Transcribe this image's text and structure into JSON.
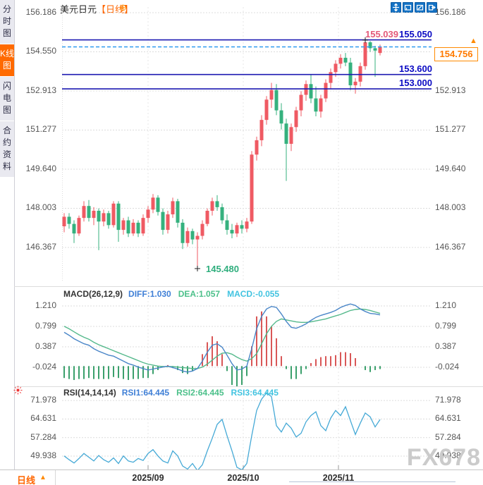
{
  "sidebar": {
    "tabs": [
      {
        "label": "分时图",
        "active": false
      },
      {
        "label": "K线图",
        "active": true
      },
      {
        "label": "闪电图",
        "active": false
      },
      {
        "label": "合约资料",
        "active": false
      }
    ]
  },
  "header": {
    "symbol": "美元日元",
    "period_tag": "【日线】",
    "add_icon": "⊕"
  },
  "toolbar": {
    "icons": [
      "pan-icon",
      "box-zoom-icon",
      "chart-style-icon",
      "export-icon"
    ]
  },
  "colors": {
    "accent_orange": "#ff6a00",
    "candle_up": "#ef5a63",
    "candle_down": "#35b17e",
    "level_line": "#1d1ab2",
    "current_dashed": "#2f9bef",
    "diff_line": "#4a86c8",
    "dea_line": "#55b98c",
    "macd_cyan": "#41c3e0",
    "rsi_line": "#45a9d6"
  },
  "price_panel": {
    "left_axis": [
      "156.186",
      "154.550",
      "152.913",
      "151.277",
      "149.640",
      "148.003",
      "146.367"
    ],
    "right_axis": [
      "156.186",
      "152.913",
      "151.277",
      "149.640",
      "148.003",
      "146.367"
    ],
    "levels": {
      "high_marker": "155.039",
      "resistance": "155.050",
      "support1": "153.600",
      "support2": "153.000",
      "current_price": "154.756",
      "low_marker": "145.480"
    }
  },
  "macd_panel": {
    "title": "MACD(26,12,9)",
    "diff_label": "DIFF:1.030",
    "dea_label": "DEA:1.057",
    "macd_label": "MACD:-0.055",
    "axis": [
      "1.210",
      "0.799",
      "0.387",
      "-0.024"
    ]
  },
  "rsi_panel": {
    "title": "RSI(14,14,14)",
    "rsi1_label": "RSI1:64.445",
    "rsi2_label": "RSI2:64.445",
    "rsi3_label": "RSI3:64.445",
    "axis": [
      "71.978",
      "64.631",
      "57.284",
      "49.938"
    ]
  },
  "footer": {
    "period": "日线",
    "arrow": "▲",
    "months": [
      "2025/09",
      "2025/10",
      "2025/11"
    ]
  },
  "watermark": "FX678",
  "chart_data": [
    {
      "type": "candlestick",
      "title": "美元日元 日线",
      "y_ticks": [
        156.186,
        154.55,
        152.913,
        151.277,
        149.64,
        148.003,
        146.367
      ],
      "ylim": [
        145.0,
        156.5
      ],
      "x_tick_labels": [
        "2025/09",
        "2025/10",
        "2025/11"
      ],
      "levels": {
        "resistance": 155.05,
        "support1": 153.6,
        "support2": 153.0,
        "current": 154.756
      },
      "high_marker": {
        "index": 61,
        "price": 155.039
      },
      "low_marker": {
        "index": 27,
        "price": 145.48
      },
      "ohlc": [
        [
          147.25,
          147.8,
          147.0,
          147.65
        ],
        [
          147.65,
          147.8,
          147.15,
          147.35
        ],
        [
          147.35,
          147.5,
          146.55,
          146.95
        ],
        [
          146.95,
          147.7,
          146.85,
          147.6
        ],
        [
          147.6,
          148.3,
          147.45,
          148.1
        ],
        [
          148.1,
          148.35,
          147.45,
          147.6
        ],
        [
          147.6,
          148.05,
          147.3,
          147.9
        ],
        [
          147.9,
          148.0,
          146.25,
          147.45
        ],
        [
          147.45,
          147.95,
          147.25,
          147.8
        ],
        [
          147.8,
          147.9,
          147.15,
          147.3
        ],
        [
          147.3,
          148.3,
          147.2,
          148.2
        ],
        [
          148.2,
          148.3,
          146.6,
          147.1
        ],
        [
          147.1,
          147.6,
          146.9,
          147.5
        ],
        [
          147.5,
          147.65,
          146.8,
          146.95
        ],
        [
          146.95,
          147.55,
          146.85,
          147.4
        ],
        [
          147.4,
          147.5,
          146.8,
          146.95
        ],
        [
          146.95,
          147.75,
          146.85,
          147.6
        ],
        [
          147.6,
          148.1,
          147.4,
          147.95
        ],
        [
          147.95,
          148.6,
          147.8,
          148.45
        ],
        [
          148.45,
          148.55,
          147.7,
          147.85
        ],
        [
          147.85,
          148.0,
          146.9,
          147.1
        ],
        [
          147.1,
          147.9,
          146.95,
          147.75
        ],
        [
          147.75,
          148.45,
          147.6,
          148.3
        ],
        [
          148.3,
          148.4,
          147.2,
          147.4
        ],
        [
          147.4,
          147.55,
          146.3,
          146.55
        ],
        [
          146.55,
          147.2,
          146.4,
          147.05
        ],
        [
          147.05,
          147.15,
          146.5,
          146.7
        ],
        [
          146.7,
          147.0,
          145.48,
          146.85
        ],
        [
          146.85,
          147.5,
          146.7,
          147.35
        ],
        [
          147.35,
          148.0,
          147.25,
          147.9
        ],
        [
          147.9,
          148.45,
          147.7,
          148.3
        ],
        [
          148.3,
          148.55,
          147.9,
          148.05
        ],
        [
          148.05,
          148.2,
          147.35,
          147.5
        ],
        [
          147.5,
          147.75,
          146.9,
          147.1
        ],
        [
          147.1,
          147.35,
          146.75,
          146.95
        ],
        [
          146.95,
          147.4,
          146.8,
          147.3
        ],
        [
          147.3,
          147.5,
          146.95,
          147.15
        ],
        [
          147.15,
          147.6,
          147.0,
          147.45
        ],
        [
          147.45,
          150.4,
          147.35,
          150.25
        ],
        [
          150.25,
          151.0,
          150.0,
          150.85
        ],
        [
          150.85,
          151.9,
          150.6,
          151.7
        ],
        [
          151.7,
          152.7,
          151.5,
          152.55
        ],
        [
          152.55,
          153.25,
          152.2,
          152.95
        ],
        [
          152.95,
          153.2,
          151.9,
          152.1
        ],
        [
          152.1,
          152.4,
          151.3,
          151.55
        ],
        [
          151.55,
          151.75,
          149.15,
          150.7
        ],
        [
          150.7,
          151.55,
          150.4,
          151.4
        ],
        [
          151.4,
          152.25,
          151.2,
          152.1
        ],
        [
          152.1,
          152.9,
          151.85,
          152.75
        ],
        [
          152.75,
          153.35,
          152.5,
          153.2
        ],
        [
          153.2,
          153.6,
          152.4,
          152.6
        ],
        [
          152.6,
          153.1,
          151.85,
          152.05
        ],
        [
          152.05,
          152.75,
          151.8,
          152.6
        ],
        [
          152.6,
          153.4,
          152.45,
          153.25
        ],
        [
          153.25,
          153.85,
          153.0,
          153.7
        ],
        [
          153.7,
          154.2,
          153.5,
          154.05
        ],
        [
          154.05,
          154.45,
          153.85,
          154.3
        ],
        [
          154.3,
          154.5,
          153.95,
          154.1
        ],
        [
          154.1,
          154.3,
          152.95,
          153.15
        ],
        [
          153.15,
          153.45,
          152.8,
          153.3
        ],
        [
          153.3,
          154.1,
          153.1,
          153.95
        ],
        [
          153.95,
          155.04,
          153.8,
          154.95
        ],
        [
          154.95,
          155.0,
          154.55,
          154.7
        ],
        [
          154.7,
          154.8,
          153.5,
          154.6
        ],
        [
          154.5,
          154.85,
          154.4,
          154.76
        ]
      ]
    },
    {
      "type": "line+bar",
      "title": "MACD(26,12,9)",
      "y_ticks": [
        1.21,
        0.799,
        0.387,
        -0.024
      ],
      "series": [
        {
          "name": "DIFF",
          "values": [
            0.68,
            0.62,
            0.55,
            0.5,
            0.45,
            0.42,
            0.35,
            0.3,
            0.26,
            0.22,
            0.2,
            0.15,
            0.1,
            0.05,
            0.02,
            -0.02,
            -0.05,
            -0.08,
            -0.06,
            -0.04,
            -0.02,
            0.0,
            -0.03,
            -0.06,
            -0.1,
            -0.12,
            -0.1,
            -0.05,
            0.1,
            0.28,
            0.42,
            0.45,
            0.38,
            0.22,
            0.05,
            -0.08,
            -0.06,
            0.0,
            0.35,
            0.75,
            1.0,
            1.15,
            1.2,
            1.18,
            1.05,
            0.9,
            0.78,
            0.76,
            0.8,
            0.85,
            0.92,
            0.98,
            1.02,
            1.05,
            1.08,
            1.12,
            1.18,
            1.22,
            1.25,
            1.22,
            1.15,
            1.1,
            1.06,
            1.05,
            1.03
          ]
        },
        {
          "name": "DEA",
          "values": [
            0.8,
            0.75,
            0.69,
            0.63,
            0.58,
            0.54,
            0.48,
            0.43,
            0.39,
            0.35,
            0.31,
            0.27,
            0.23,
            0.19,
            0.15,
            0.11,
            0.07,
            0.04,
            0.02,
            0.0,
            -0.01,
            -0.01,
            -0.01,
            -0.02,
            -0.03,
            -0.04,
            -0.05,
            -0.05,
            -0.02,
            0.04,
            0.12,
            0.2,
            0.26,
            0.27,
            0.24,
            0.18,
            0.13,
            0.1,
            0.15,
            0.25,
            0.45,
            0.65,
            0.8,
            0.9,
            0.95,
            0.93,
            0.91,
            0.89,
            0.88,
            0.88,
            0.89,
            0.91,
            0.93,
            0.95,
            0.98,
            1.01,
            1.04,
            1.08,
            1.12,
            1.14,
            1.15,
            1.14,
            1.12,
            1.09,
            1.06
          ]
        }
      ],
      "histogram_rule": "2*(DIFF-DEA)"
    },
    {
      "type": "line",
      "title": "RSI(14,14,14)",
      "y_ticks": [
        71.978,
        64.631,
        57.284,
        49.938
      ],
      "series": [
        {
          "name": "RSI",
          "values": [
            50.0,
            48.5,
            47.2,
            49.0,
            51.0,
            49.5,
            48.0,
            50.2,
            48.5,
            47.5,
            49.2,
            47.0,
            50.0,
            48.0,
            47.5,
            49.0,
            48.2,
            51.0,
            52.5,
            50.0,
            48.0,
            47.2,
            52.0,
            50.0,
            46.0,
            44.8,
            47.0,
            44.2,
            46.5,
            52.0,
            57.0,
            62.5,
            64.5,
            58.0,
            52.0,
            45.5,
            44.5,
            47.0,
            58.0,
            68.0,
            72.5,
            75.0,
            73.5,
            62.0,
            59.5,
            63.0,
            61.0,
            57.5,
            59.0,
            63.5,
            66.0,
            67.5,
            62.0,
            60.0,
            65.0,
            68.0,
            66.0,
            69.5,
            64.0,
            58.5,
            63.0,
            67.0,
            65.5,
            61.5,
            64.445
          ]
        }
      ]
    }
  ]
}
